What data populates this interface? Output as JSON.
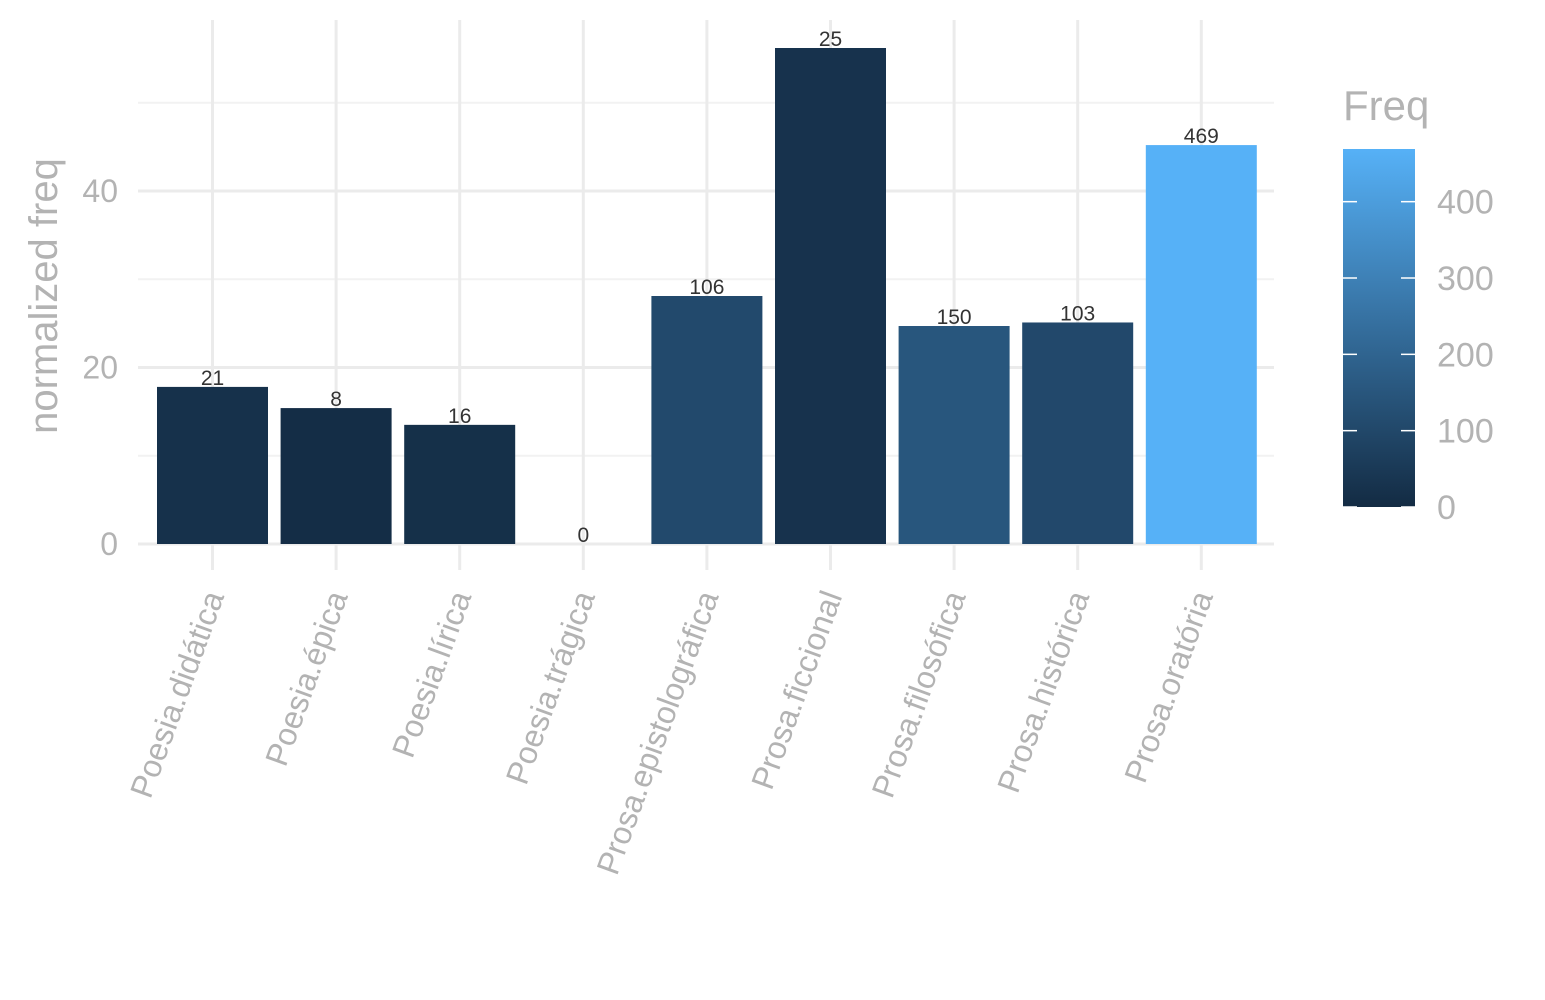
{
  "chart_data": {
    "type": "bar",
    "categories": [
      "Poesia.didática",
      "Poesia.épica",
      "Poesia.lírica",
      "Poesia.trágica",
      "Prosa.epistolográfica",
      "Prosa.ficcional",
      "Prosa.filosófica",
      "Prosa.histórica",
      "Prosa.oratória"
    ],
    "values": [
      17.8,
      15.4,
      13.5,
      0,
      28.1,
      56.2,
      24.7,
      25.1,
      45.2
    ],
    "freq": [
      21,
      8,
      16,
      0,
      106,
      25,
      150,
      103,
      469
    ],
    "freq_labels": [
      "21",
      "8",
      "16",
      "0",
      "106",
      "25",
      "150",
      "103",
      "469"
    ],
    "title": "",
    "xlabel": "",
    "ylabel": "normalized freq",
    "ylim": [
      0,
      56.2
    ],
    "y_ticks": [
      0,
      20,
      40
    ],
    "y_tick_labels": [
      "0",
      "20",
      "40"
    ],
    "grid": true,
    "legend": {
      "title": "Freq",
      "placement": "right",
      "type": "colorbar",
      "range": [
        0,
        469
      ],
      "ticks": [
        0,
        100,
        200,
        300,
        400
      ],
      "tick_labels": [
        "0",
        "100",
        "200",
        "300",
        "400"
      ],
      "color_low": "#132b43",
      "color_high": "#56b1f7"
    }
  }
}
